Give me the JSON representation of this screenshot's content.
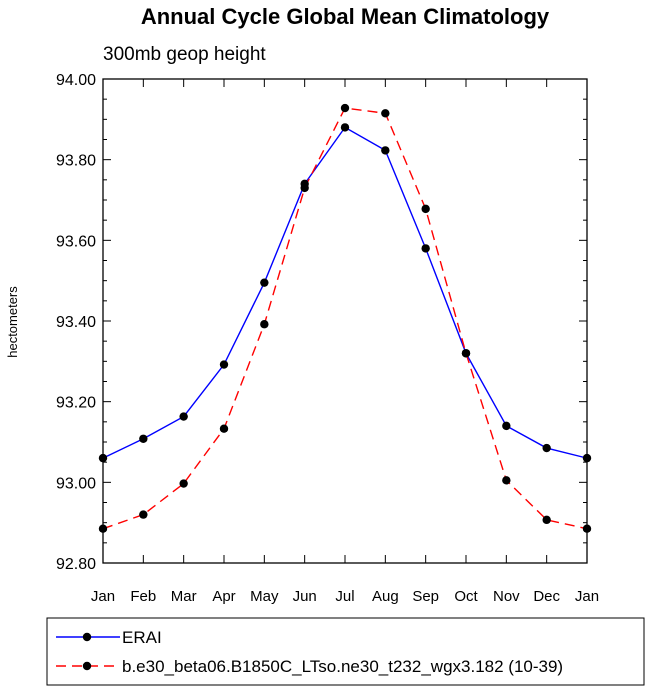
{
  "chart_data": {
    "type": "line",
    "title": "Annual Cycle Global Mean Climatology",
    "subtitle": "300mb geop height",
    "xlabel": "",
    "ylabel": "hectometers",
    "categories": [
      "Jan",
      "Feb",
      "Mar",
      "Apr",
      "May",
      "Jun",
      "Jul",
      "Aug",
      "Sep",
      "Oct",
      "Nov",
      "Dec",
      "Jan"
    ],
    "y_ticks": [
      "94.00",
      "93.80",
      "93.60",
      "93.40",
      "93.20",
      "93.00",
      "92.80"
    ],
    "ylim": [
      92.8,
      94.0
    ],
    "grid": false,
    "legend_position": "bottom",
    "series": [
      {
        "name": "ERAI",
        "color": "#0000ff",
        "line_style": "solid",
        "values": [
          93.06,
          93.108,
          93.163,
          93.292,
          93.495,
          93.74,
          93.88,
          93.823,
          93.58,
          93.32,
          93.14,
          93.085,
          93.06
        ]
      },
      {
        "name": "b.e30_beta06.B1850C_LTso.ne30_t232_wgx3.182 (10-39)",
        "color": "#ff0000",
        "line_style": "dashed",
        "values": [
          92.885,
          92.92,
          92.997,
          93.133,
          93.392,
          93.73,
          93.928,
          93.915,
          93.678,
          93.32,
          93.005,
          92.907,
          92.885
        ]
      }
    ]
  }
}
